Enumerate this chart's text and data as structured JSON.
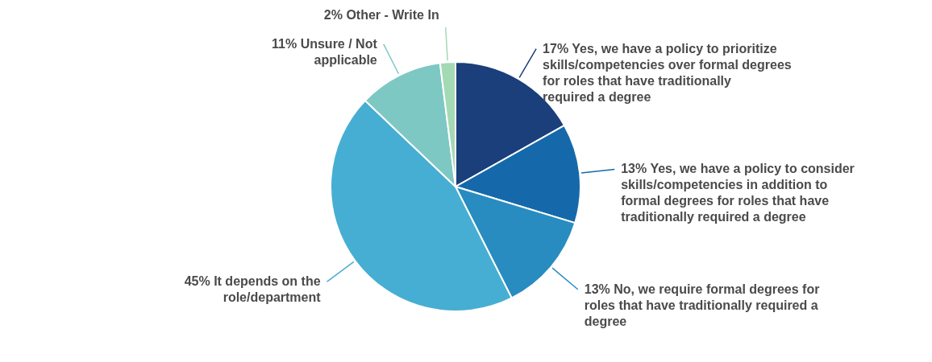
{
  "chart_data": {
    "type": "pie",
    "categories": [
      "Yes, we have a policy to prioritize skills/competencies over formal degrees for roles that have traditionally required a degree",
      "Yes, we have a policy to consider skills/competencies in addition to formal degrees for roles that have traditionally required a degree",
      "No, we require formal degrees for roles that have traditionally required a degree",
      "It depends on the role/department",
      "Unsure / Not applicable",
      "Other - Write In"
    ],
    "values": [
      17,
      13,
      13,
      45,
      11,
      2
    ],
    "value_labels": [
      "17%",
      "13%",
      "13%",
      "45%",
      "11%",
      "2%"
    ],
    "colors": [
      "#1a3f7a",
      "#1569aa",
      "#288cc0",
      "#46aed2",
      "#7ec8c3",
      "#a4d9b5"
    ]
  }
}
